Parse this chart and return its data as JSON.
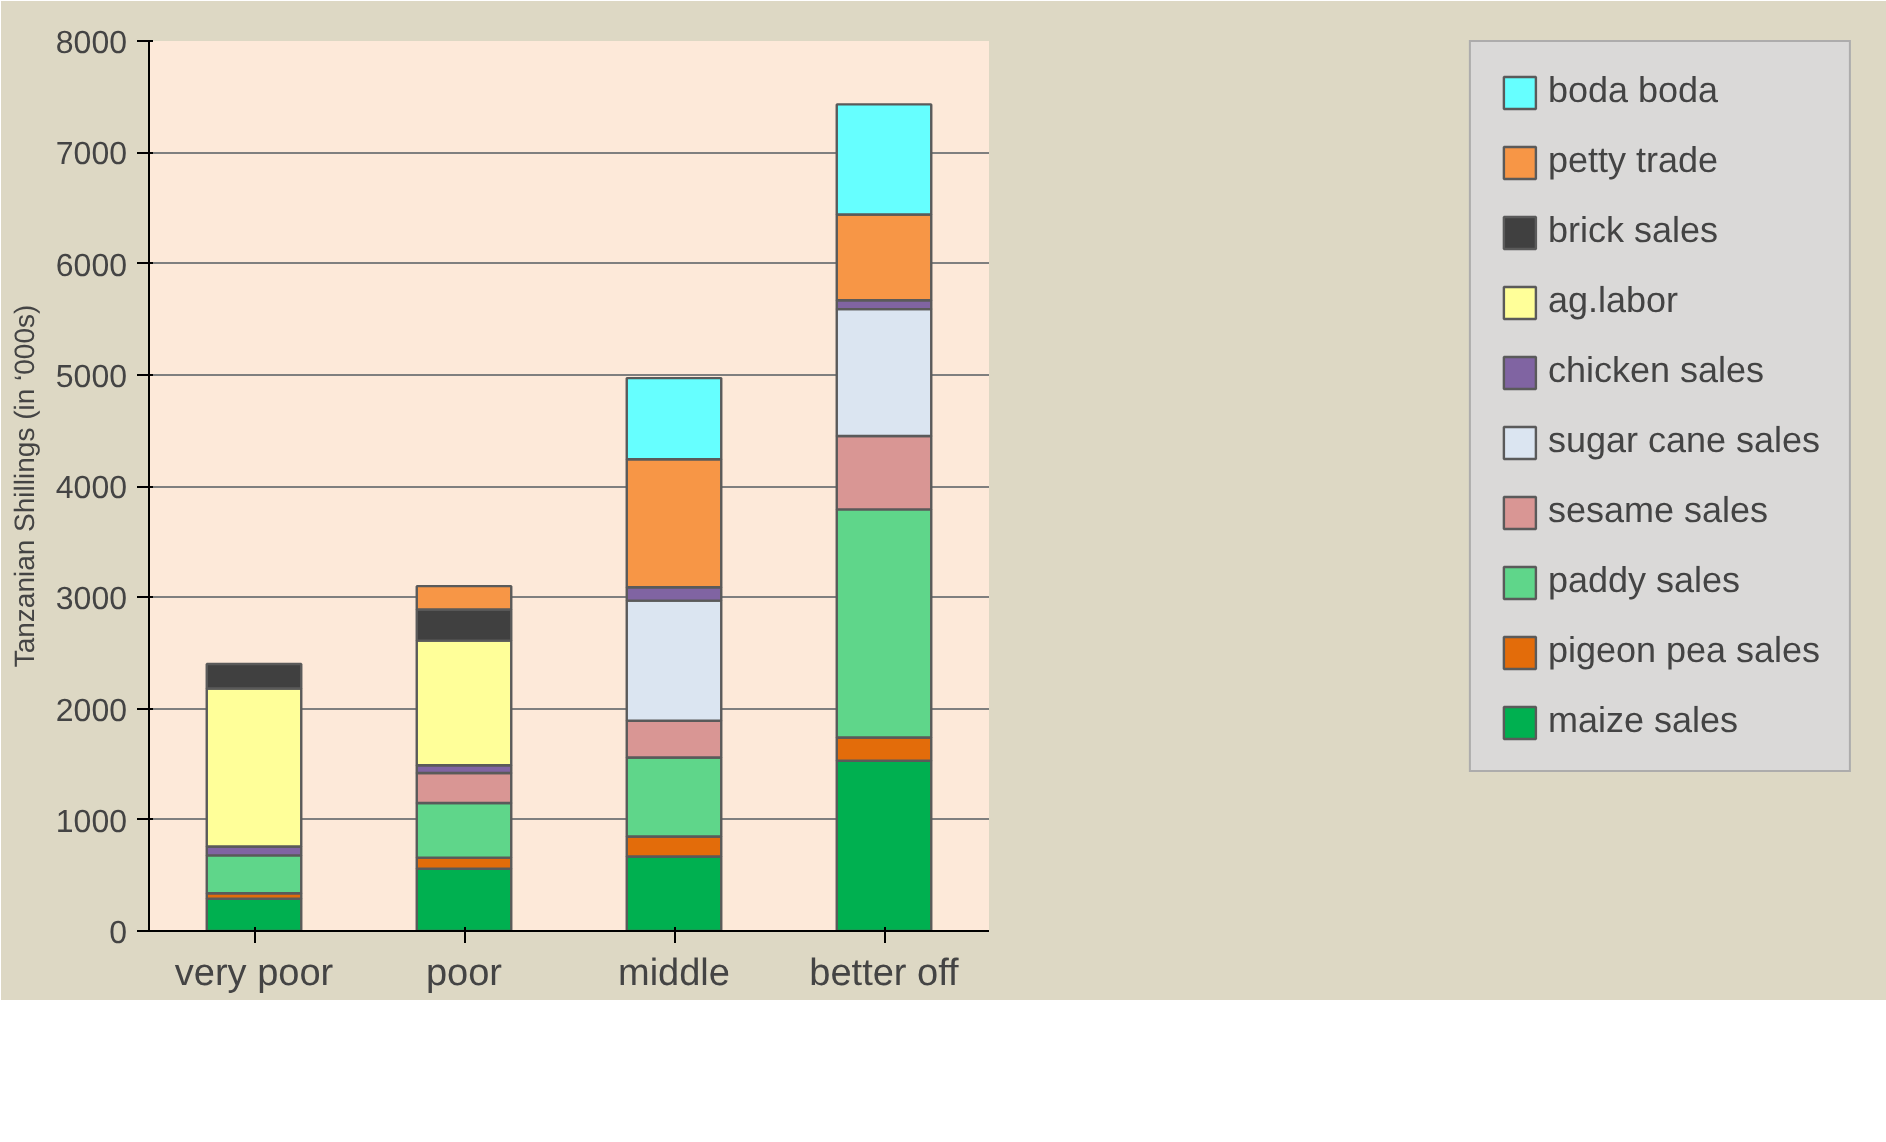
{
  "chart_data": {
    "type": "bar",
    "stacked": true,
    "ylabel": "Tanzanian Shillings (in ‘000s)",
    "categories": [
      "very poor",
      "poor",
      "middle",
      "better off"
    ],
    "ylim": [
      0,
      8000
    ],
    "yticks": [
      0,
      1000,
      2000,
      3000,
      4000,
      5000,
      6000,
      7000,
      8000
    ],
    "grid": "y",
    "legend": "right",
    "series": [
      {
        "name": "maize sales",
        "color": "#00b050",
        "values": [
          290,
          560,
          670,
          1530
        ]
      },
      {
        "name": "pigeon pea sales",
        "color": "#e36c0a",
        "values": [
          50,
          100,
          180,
          210
        ]
      },
      {
        "name": "paddy sales",
        "color": "#5fd68a",
        "values": [
          340,
          490,
          710,
          2050
        ]
      },
      {
        "name": "sesame sales",
        "color": "#d99694",
        "values": [
          null,
          270,
          330,
          660
        ]
      },
      {
        "name": "sugar cane sales",
        "color": "#dbe5f1",
        "values": [
          null,
          null,
          1080,
          1140
        ]
      },
      {
        "name": "chicken sales",
        "color": "#8064a2",
        "values": [
          80,
          70,
          120,
          80
        ]
      },
      {
        "name": "ag.labor",
        "color": "#ffff99",
        "values": [
          1420,
          1120,
          null,
          null
        ]
      },
      {
        "name": "brick sales",
        "color": "#404040",
        "values": [
          220,
          280,
          null,
          null
        ]
      },
      {
        "name": "petty trade",
        "color": "#f79646",
        "values": [
          null,
          210,
          1150,
          770
        ]
      },
      {
        "name": "boda boda",
        "color": "#66ffff",
        "values": [
          null,
          null,
          730,
          990
        ]
      }
    ]
  }
}
